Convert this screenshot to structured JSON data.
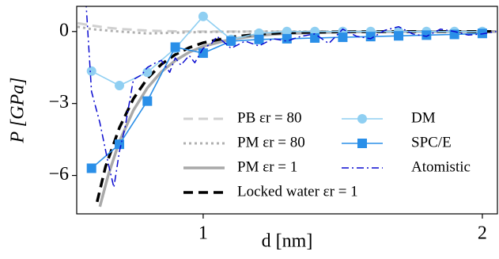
{
  "chart_data": {
    "type": "line",
    "xlabel": "d [nm]",
    "ylabel": "P [GPa]",
    "xlim": [
      0.547,
      2.054
    ],
    "ylim": [
      -7.6,
      1.05
    ],
    "xticks": [
      1,
      2
    ],
    "yticks": [
      0,
      {
        "value": -3,
        "label": "−3"
      },
      {
        "value": -6,
        "label": "−6"
      }
    ],
    "legend": "lower right",
    "series": [
      {
        "name": "PB εr = 80",
        "color": "#d0d0d0",
        "linestyle": "dashed",
        "marker": "none",
        "x": [
          0.55,
          0.6,
          0.65,
          0.7,
          0.8,
          0.9,
          1.0,
          2.05
        ],
        "values": [
          0.35,
          0.25,
          0.17,
          0.11,
          0.04,
          0.01,
          0,
          0
        ]
      },
      {
        "name": "PM εr = 80",
        "color": "#b0b0b0",
        "linestyle": "dotted",
        "marker": "none",
        "x": [
          0.55,
          0.6,
          0.7,
          0.8,
          0.9,
          1.0,
          1.2,
          2.05
        ],
        "values": [
          0.2,
          0.1,
          0,
          -0.08,
          -0.05,
          -0.02,
          0,
          0
        ]
      },
      {
        "name": "PM εr = 1",
        "color": "#a9a9a9",
        "linestyle": "solid",
        "marker": "none",
        "x": [
          0.63,
          0.66,
          0.7,
          0.75,
          0.8,
          0.85,
          0.9,
          0.95,
          1.0,
          1.1,
          1.2,
          1.3,
          1.5,
          1.75,
          2.05
        ],
        "values": [
          -7.3,
          -5.98,
          -4.58,
          -3.28,
          -2.35,
          -1.68,
          -1.21,
          -0.86,
          -0.62,
          -0.32,
          -0.16,
          -0.08,
          -0.02,
          0,
          0
        ]
      },
      {
        "name": "Locked water εr = 1",
        "color": "#000000",
        "linestyle": "dashed",
        "marker": "none",
        "x": [
          0.62,
          0.65,
          0.7,
          0.75,
          0.8,
          0.85,
          0.9,
          0.95,
          1.0,
          1.1,
          1.2,
          1.3,
          1.5,
          1.75,
          2.05
        ],
        "values": [
          -7.1,
          -5.64,
          -4.01,
          -2.8,
          -1.96,
          -1.37,
          -0.96,
          -0.67,
          -0.47,
          -0.23,
          -0.11,
          -0.05,
          -0.01,
          0,
          0
        ]
      },
      {
        "name": "DM",
        "color": "#8fcff2",
        "linestyle": "solid",
        "marker": "circle",
        "x": [
          0.6,
          0.7,
          0.8,
          0.9,
          1.0,
          1.1,
          1.2,
          1.3,
          1.4,
          1.5,
          1.6,
          1.7,
          1.8,
          1.9,
          2.0
        ],
        "values": [
          -1.65,
          -2.25,
          -1.7,
          -0.7,
          0.63,
          -0.33,
          -0.07,
          0,
          0,
          0,
          0,
          0,
          0,
          0,
          0
        ]
      },
      {
        "name": "SPC/E",
        "color": "#2a8fe8",
        "linestyle": "solid",
        "marker": "square",
        "x": [
          0.6,
          0.7,
          0.8,
          0.9,
          1.0,
          1.1,
          1.2,
          1.3,
          1.4,
          1.5,
          1.6,
          1.7,
          1.8,
          1.9,
          2.0
        ],
        "values": [
          -5.7,
          -4.7,
          -2.9,
          -0.65,
          -0.9,
          -0.4,
          -0.33,
          -0.3,
          -0.27,
          -0.24,
          -0.21,
          -0.18,
          -0.15,
          -0.12,
          -0.08
        ]
      },
      {
        "name": "Atomistic",
        "color": "#0a0ad0",
        "linestyle": "dashdot",
        "marker": "none",
        "x": [
          0.58,
          0.6,
          0.63,
          0.66,
          0.68,
          0.7,
          0.72,
          0.75,
          0.78,
          0.8,
          0.83,
          0.85,
          0.88,
          0.9,
          0.92,
          0.95,
          0.97,
          1.0,
          1.03,
          1.05,
          1.08,
          1.1,
          1.15,
          1.2,
          1.25,
          1.3,
          1.35,
          1.4,
          1.45,
          1.5,
          1.55,
          1.6,
          1.65,
          1.7,
          1.75,
          1.8,
          1.85,
          1.9,
          1.95,
          2.0,
          2.05
        ],
        "values": [
          1.3,
          -2.5,
          -3.8,
          -5.5,
          -6.5,
          -5.0,
          -4.0,
          -2.0,
          -1.8,
          -1.5,
          -1.3,
          -1.2,
          -1.7,
          -1.1,
          -1.4,
          -1.0,
          -1.3,
          -0.7,
          -0.5,
          -0.2,
          -0.5,
          -0.7,
          -0.4,
          -0.6,
          -0.3,
          -0.4,
          -0.2,
          -0.1,
          -0.5,
          0.1,
          -0.2,
          -0.3,
          0.05,
          0.2,
          -0.1,
          -0.2,
          0.1,
          0,
          -0.15,
          -0.1,
          0
        ]
      }
    ]
  }
}
